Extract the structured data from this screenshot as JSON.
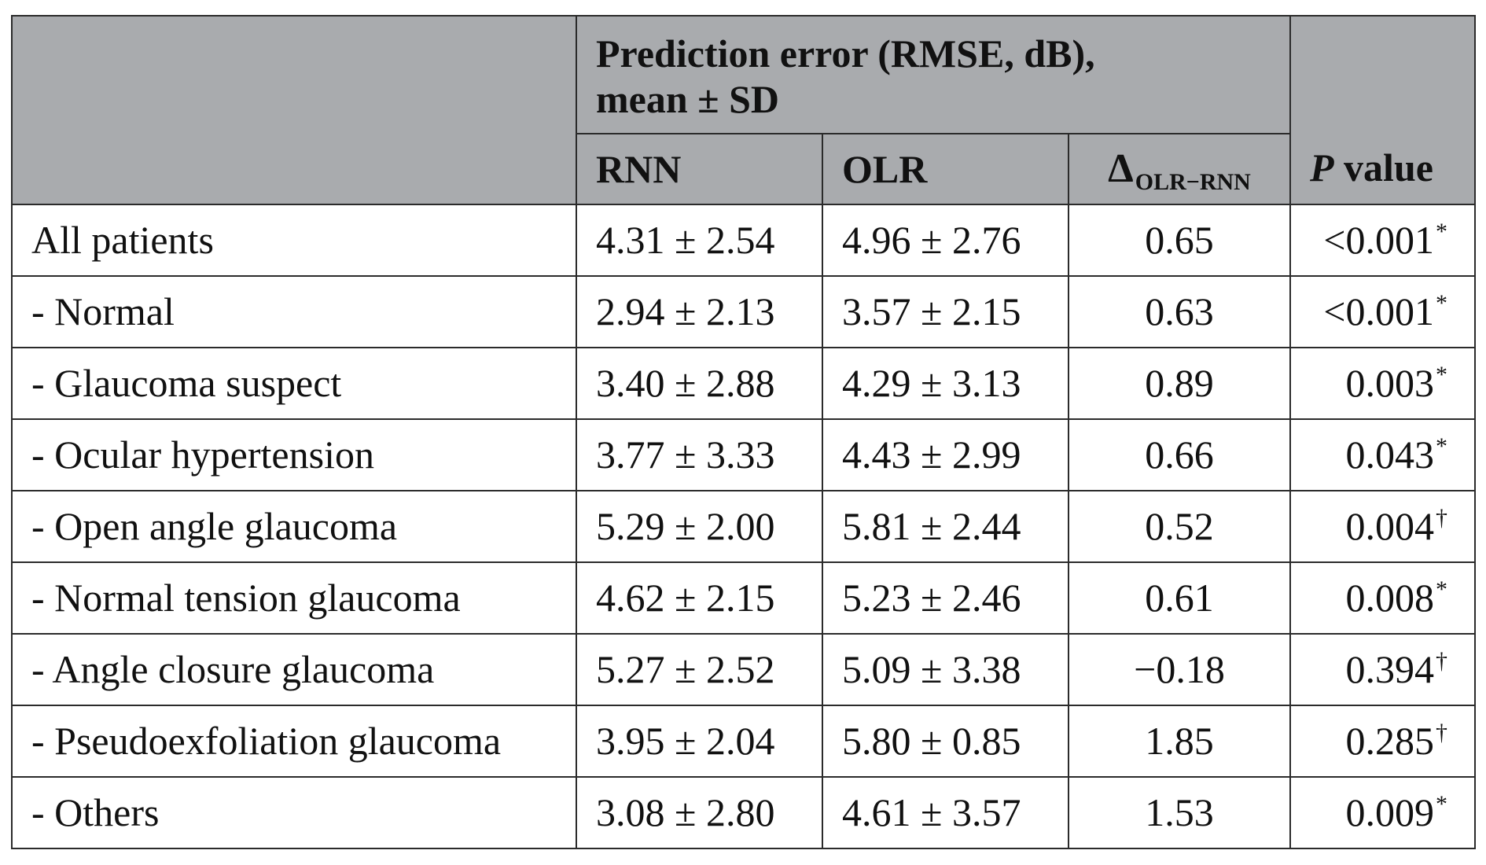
{
  "header": {
    "group_line1": "Prediction error (RMSE, dB),",
    "group_line2": "mean ± SD",
    "col_rnn": "RNN",
    "col_olr": "OLR",
    "col_delta_symbol": "Δ",
    "col_delta_subscript": "OLR−RNN",
    "col_p_italic": "P",
    "col_p_rest": " value"
  },
  "rows": [
    {
      "label": "All patients",
      "rnn": "4.31 ± 2.54",
      "olr": "4.96 ± 2.76",
      "delta": "0.65",
      "p": "<0.001",
      "mark": "*"
    },
    {
      "label": "- Normal",
      "rnn": "2.94 ± 2.13",
      "olr": "3.57 ± 2.15",
      "delta": "0.63",
      "p": "<0.001",
      "mark": "*"
    },
    {
      "label": "- Glaucoma suspect",
      "rnn": "3.40 ± 2.88",
      "olr": "4.29 ± 3.13",
      "delta": "0.89",
      "p": "0.003",
      "mark": "*"
    },
    {
      "label": "- Ocular hypertension",
      "rnn": "3.77 ± 3.33",
      "olr": "4.43 ± 2.99",
      "delta": "0.66",
      "p": "0.043",
      "mark": "*"
    },
    {
      "label": "- Open angle glaucoma",
      "rnn": "5.29 ± 2.00",
      "olr": "5.81 ± 2.44",
      "delta": "0.52",
      "p": "0.004",
      "mark": "†"
    },
    {
      "label": "- Normal tension glaucoma",
      "rnn": "4.62 ± 2.15",
      "olr": "5.23 ± 2.46",
      "delta": "0.61",
      "p": "0.008",
      "mark": "*"
    },
    {
      "label": "- Angle closure glaucoma",
      "rnn": "5.27 ± 2.52",
      "olr": "5.09 ± 3.38",
      "delta": "−0.18",
      "p": "0.394",
      "mark": "†"
    },
    {
      "label": "- Pseudoexfoliation glaucoma",
      "rnn": "3.95 ± 2.04",
      "olr": "5.80 ± 0.85",
      "delta": "1.85",
      "p": "0.285",
      "mark": "†"
    },
    {
      "label": "- Others",
      "rnn": "3.08 ± 2.80",
      "olr": "4.61 ± 3.57",
      "delta": "1.53",
      "p": "0.009",
      "mark": "*"
    }
  ]
}
